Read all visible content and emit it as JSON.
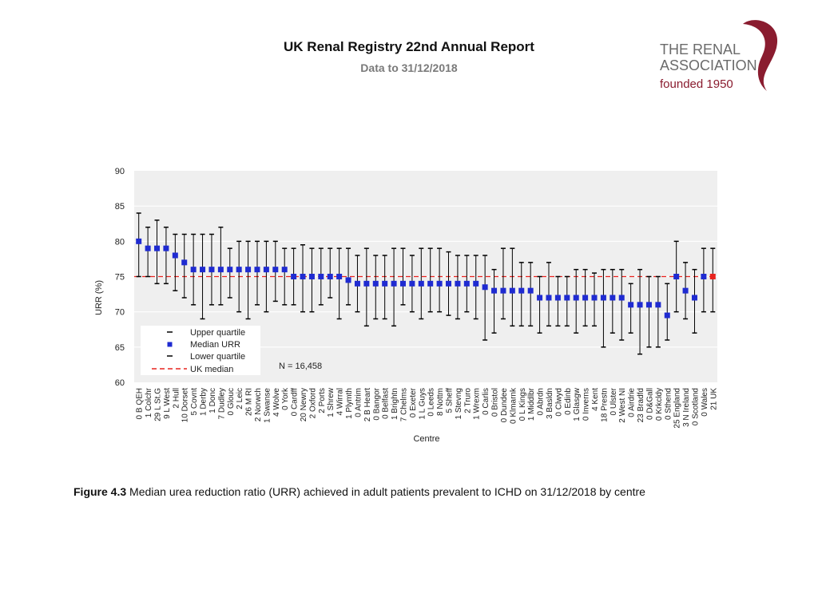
{
  "header": {
    "title": "UK Renal Registry 22nd Annual Report",
    "subtitle": "Data to 31/12/2018"
  },
  "logo": {
    "line1": "THE RENAL",
    "line2": "ASSOCIATION",
    "line3": "founded 1950",
    "color": "#8a1c2f"
  },
  "caption": {
    "label": "Figure 4.3",
    "text": " Median urea reduction ratio (URR) achieved in adult patients prevalent to ICHD on 31/12/2018 by centre"
  },
  "chart_data": {
    "type": "scatter",
    "ylabel": "URR (%)",
    "xlabel": "Centre",
    "ylim": [
      60,
      90
    ],
    "yticks": [
      60,
      65,
      70,
      75,
      80,
      85,
      90
    ],
    "uk_median": 75,
    "n_label": "N = 16,458",
    "legend": [
      "Upper quartile",
      "Median URR",
      "Lower quartile",
      "UK median"
    ],
    "colors": {
      "median": "#1f2bd1",
      "uk_point": "#e8231f",
      "uk_median_line": "#e8231f",
      "whisker": "#000000",
      "plot_bg": "#efefef"
    },
    "centres": [
      "0 B QEH",
      "1 Colchr",
      "29 L St.G",
      "9 L West",
      "2 Hull",
      "10 Dorset",
      "5 Covnt",
      "1 Derby",
      "1 Donc",
      "7 Dudley",
      "0 Glouc",
      "2 Leic",
      "26 M RI",
      "2 Norwch",
      "1 Swanse",
      "4 Wolve",
      "0 York",
      "0 Cardff",
      "20 Newry",
      "2 Oxford",
      "2 Ports",
      "1 Shrew",
      "4 Wirral",
      "1 Plymth",
      "0 Antrim",
      "2 B Heart",
      "0 Bangor",
      "0 Belfast",
      "1 Brightn",
      "7 Chelms",
      "0 Exeter",
      "1 L Guys",
      "0 Leeds",
      "8 Nottm",
      "5 Sheff",
      "1 Stevng",
      "2 Truro",
      "1 Wrexm",
      "0 Carlis",
      "0 Bristol",
      "0 Dundee",
      "0 Klmarnk",
      "0 L Kings",
      "1 Middlbr",
      "0 Abrdn",
      "3 Basldn",
      "0 Clwyd",
      "0 Edinb",
      "1 Glasgw",
      "0 Inverns",
      "4 Kent",
      "18 Prestn",
      "0 Ulster",
      "2 West NI",
      "0 Airdrie",
      "23 Bradfd",
      "0 D&Gall",
      "0 Krkcldy",
      "0 Sthend",
      "25 England",
      "3 N Ireland",
      "0 Scotland",
      "0 Wales",
      "21 UK"
    ],
    "median": [
      80,
      79,
      79,
      79,
      78,
      77,
      76,
      76,
      76,
      76,
      76,
      76,
      76,
      76,
      76,
      76,
      76,
      75,
      75,
      75,
      75,
      75,
      75,
      74.5,
      74,
      74,
      74,
      74,
      74,
      74,
      74,
      74,
      74,
      74,
      74,
      74,
      74,
      74,
      73.5,
      73,
      73,
      73,
      73,
      73,
      72,
      72,
      72,
      72,
      72,
      72,
      72,
      72,
      72,
      72,
      71,
      71,
      71,
      71,
      69.5,
      75,
      73,
      72,
      75,
      75
    ],
    "upper_quartile": [
      84,
      82,
      83,
      82,
      81,
      81,
      81,
      81,
      81,
      82,
      79,
      80,
      80,
      80,
      80,
      80,
      79,
      79,
      79.5,
      79,
      79,
      79,
      79,
      79,
      78,
      79,
      78,
      78,
      79,
      79,
      78,
      79,
      79,
      79,
      78.5,
      78,
      78,
      78,
      78,
      76,
      79,
      79,
      77,
      77,
      75,
      77,
      75,
      75,
      76,
      76,
      75.5,
      76,
      76,
      76,
      74,
      76,
      75,
      75,
      74,
      80,
      77,
      76,
      79,
      79
    ],
    "lower_quartile": [
      75,
      75,
      74,
      74,
      73,
      72,
      71,
      69,
      71,
      71,
      72,
      70,
      69,
      71,
      70,
      71.5,
      71,
      71,
      70,
      70,
      71,
      72,
      69,
      71,
      70,
      68,
      69,
      69,
      68,
      71,
      70,
      69,
      70,
      70,
      69.5,
      69,
      70,
      69,
      66,
      67,
      69,
      68,
      68,
      68,
      67,
      68,
      68,
      68,
      67,
      68,
      68,
      65,
      67,
      66,
      67,
      64,
      65,
      65,
      66,
      70,
      69,
      67,
      70,
      70
    ]
  }
}
